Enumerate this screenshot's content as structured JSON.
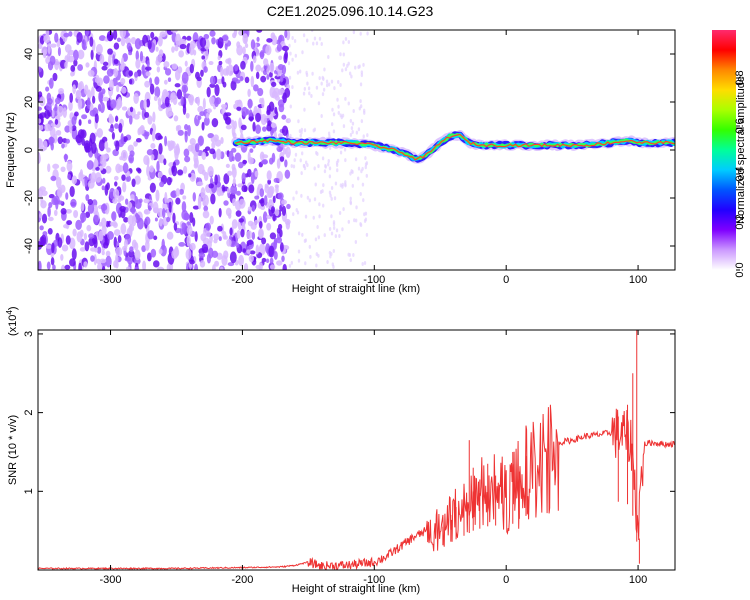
{
  "title": "C2E1.2025.096.10.14.G23",
  "chart_data": [
    {
      "type": "heatmap",
      "xlabel": "Height of straight line (km)",
      "ylabel": "Frequency (Hz)",
      "xlim": [
        -355,
        128
      ],
      "ylim": [
        -50,
        50
      ],
      "xticks": [
        -300,
        -200,
        -100,
        0,
        100
      ],
      "yticks": [
        -40,
        -20,
        0,
        20,
        40
      ],
      "xtick_labels": [
        "-300",
        "-200",
        "-100",
        "0",
        "100"
      ],
      "ytick_labels": [
        "-40",
        "-20",
        "0",
        "20",
        "40"
      ],
      "colorbar": {
        "label": "Normalized spectral amplitude",
        "range": [
          0,
          1
        ],
        "ticks": [
          0.0,
          0.2,
          0.4,
          0.6,
          0.8
        ],
        "tick_labels": [
          "0.0",
          "0.2",
          "0.4",
          "0.6",
          "0.8"
        ],
        "colormap": [
          "#ffffff",
          "#cc99ff",
          "#7f00ff",
          "#2200ff",
          "#0055ff",
          "#00ccff",
          "#00ff99",
          "#33ff00",
          "#aaff00",
          "#ffdd00",
          "#ff8800",
          "#ff0000",
          "#ff2a6e"
        ]
      },
      "ridge": {
        "description_x": [
          -205,
          -180,
          -160,
          -140,
          -120,
          -100,
          -85,
          -75,
          -68,
          -60,
          -50,
          -42,
          -35,
          -28,
          -20,
          -10,
          0,
          20,
          40,
          60,
          80,
          95,
          100,
          105,
          128
        ],
        "frequency_y": [
          3,
          4,
          3,
          3,
          3,
          2,
          0,
          -2,
          -4,
          -2,
          3,
          6,
          6,
          3,
          2,
          2,
          2,
          2,
          2,
          2,
          3,
          4,
          3,
          3,
          3
        ]
      },
      "noise_region_x": [
        -355,
        -165
      ]
    },
    {
      "type": "line",
      "xlabel": "Height of straight line (km)",
      "ylabel": "SNR (10 * v/v)",
      "y_scale_note": "(x10",
      "y_scale_exp": "4",
      "xlim": [
        -355,
        128
      ],
      "ylim": [
        0,
        3.05
      ],
      "xticks": [
        -300,
        -200,
        -100,
        0,
        100
      ],
      "yticks": [
        1,
        2,
        3
      ],
      "xtick_labels": [
        "-300",
        "-200",
        "-100",
        "0",
        "100"
      ],
      "ytick_labels": [
        "1",
        "2",
        "3"
      ],
      "color": "#ee3333",
      "series": [
        {
          "x": [
            -355,
            -300,
            -250,
            -200,
            -170,
            -160,
            -150,
            -140,
            -120,
            -100,
            -90,
            -80,
            -70,
            -60,
            -50,
            -40,
            -30,
            -25,
            -20,
            -10,
            0,
            10,
            20,
            30,
            40,
            50,
            60,
            70,
            80,
            90,
            95,
            100,
            102,
            105,
            110,
            120,
            128
          ],
          "values": [
            0.02,
            0.02,
            0.02,
            0.03,
            0.04,
            0.06,
            0.1,
            0.05,
            0.06,
            0.1,
            0.18,
            0.3,
            0.42,
            0.5,
            0.6,
            0.75,
            0.9,
            1.0,
            1.05,
            1.15,
            1.05,
            1.3,
            1.45,
            1.6,
            1.62,
            1.65,
            1.7,
            1.72,
            1.75,
            1.72,
            1.6,
            0.5,
            1.1,
            1.6,
            1.62,
            1.6,
            1.6
          ]
        }
      ],
      "spikes": {
        "x": [
          -48,
          -42,
          -38,
          -32,
          -28,
          -25,
          -20,
          -14,
          -8,
          5,
          10,
          15,
          85,
          92,
          96,
          99,
          101
        ],
        "values": [
          0.55,
          0.7,
          0.8,
          1.05,
          1.65,
          1.3,
          1.15,
          1.35,
          1.2,
          1.5,
          1.25,
          1.45,
          1.95,
          2.1,
          2.5,
          3.05,
          0.08
        ]
      }
    }
  ]
}
